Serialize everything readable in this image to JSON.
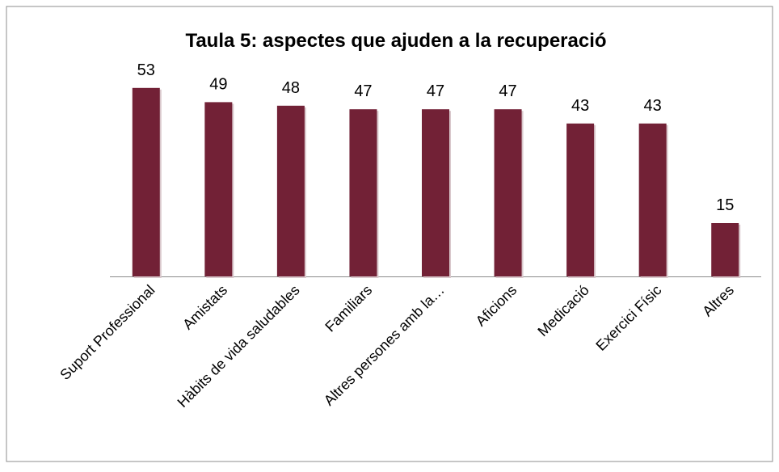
{
  "chart_data": {
    "type": "bar",
    "title": "Taula 5: aspectes que ajuden a la recuperació",
    "categories": [
      "Suport Professional",
      "Amistats",
      "Hàbits de vida saludables",
      "Familiars",
      "Altres persones amb la…",
      "Aficions",
      "Medicació",
      "Exercici Físic",
      "Altres"
    ],
    "values": [
      53,
      49,
      48,
      47,
      47,
      47,
      43,
      43,
      15
    ],
    "color": "#722136",
    "ylim": [
      0,
      60
    ]
  }
}
